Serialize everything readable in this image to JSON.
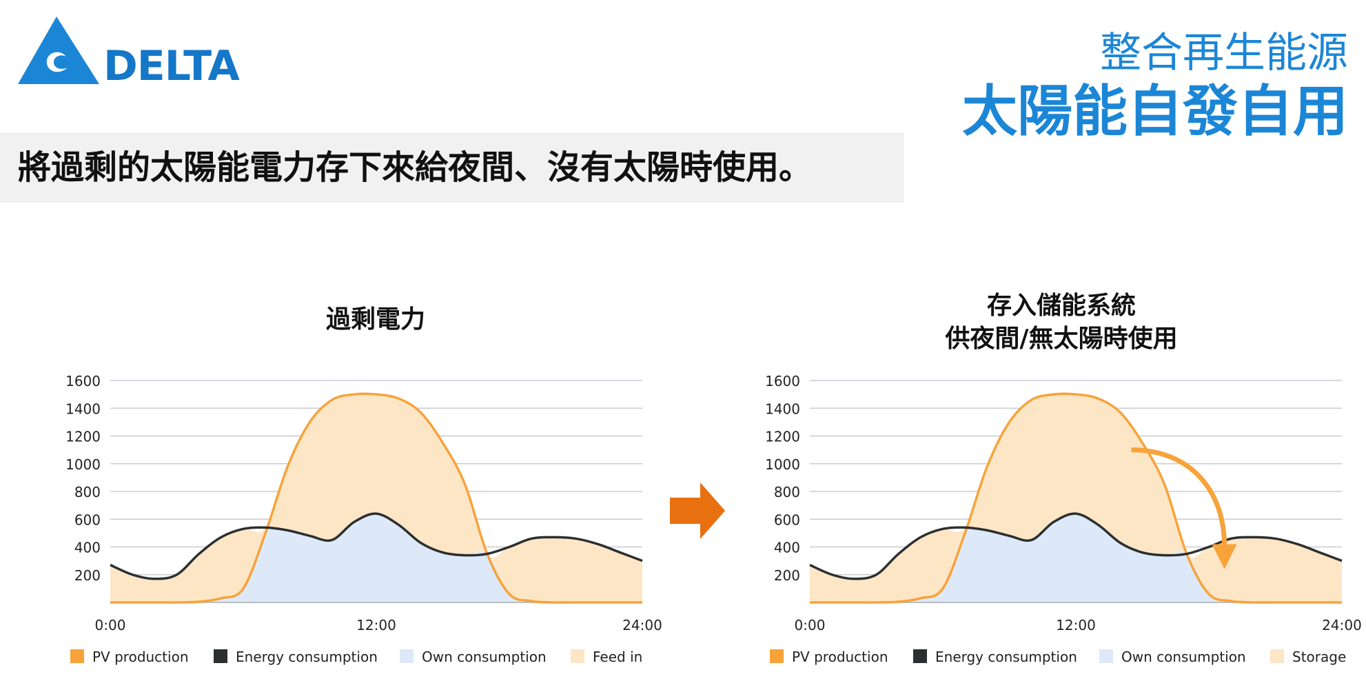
{
  "header": {
    "logo_text": "DELTA",
    "subtitle": "整合再生能源",
    "title": "太陽能自發自用"
  },
  "banner": {
    "text": "將過剩的太陽能電力存下來給夜間、沒有太陽時使用。"
  },
  "colors": {
    "brand": "#1477c8",
    "pv": "#f7a33a",
    "consumption": "#2b2f2f",
    "own": "#dde9f8",
    "surplus": "#fde6c6",
    "arrow": "#e8700e"
  },
  "chart_data": [
    {
      "type": "area",
      "title": "過剩電力",
      "ylim": [
        0,
        1600
      ],
      "yticks": [
        "200",
        "400",
        "600",
        "800",
        "1000",
        "1200",
        "1400",
        "1600"
      ],
      "xlim": [
        0,
        24
      ],
      "xticks": [
        {
          "x": 0,
          "label": "0:00"
        },
        {
          "x": 12,
          "label": "12:00"
        },
        {
          "x": 24,
          "label": "24:00"
        }
      ],
      "grid": true,
      "legend_position": "bottom",
      "legend": [
        {
          "label": "PV production",
          "color": "#f7a33a"
        },
        {
          "label": "Energy consumption",
          "color": "#2b2f2f"
        },
        {
          "label": "Own consumption",
          "color": "#dde9f8"
        },
        {
          "label": "Feed in",
          "color": "#fde6c6"
        }
      ],
      "x": [
        0,
        1,
        2,
        3,
        4,
        5,
        6,
        7,
        8,
        9,
        10,
        11,
        12,
        13,
        14,
        15,
        16,
        17,
        18,
        19,
        20,
        21,
        22,
        23,
        24
      ],
      "series": [
        {
          "name": "PV production",
          "values": [
            0,
            0,
            0,
            0,
            5,
            30,
            100,
            500,
            980,
            1300,
            1460,
            1500,
            1500,
            1470,
            1370,
            1150,
            850,
            350,
            60,
            10,
            0,
            0,
            0,
            0,
            0
          ]
        },
        {
          "name": "Energy consumption",
          "values": [
            270,
            200,
            170,
            200,
            350,
            470,
            530,
            540,
            520,
            480,
            450,
            580,
            640,
            560,
            430,
            360,
            340,
            350,
            400,
            460,
            470,
            460,
            420,
            360,
            300
          ]
        }
      ]
    },
    {
      "type": "area",
      "title": "存入儲能系統\n供夜間/無太陽時使用",
      "ylim": [
        0,
        1600
      ],
      "yticks": [
        "200",
        "400",
        "600",
        "800",
        "1000",
        "1200",
        "1400",
        "1600"
      ],
      "xlim": [
        0,
        24
      ],
      "xticks": [
        {
          "x": 0,
          "label": "0:00"
        },
        {
          "x": 12,
          "label": "12:00"
        },
        {
          "x": 24,
          "label": "24:00"
        }
      ],
      "grid": true,
      "legend_position": "bottom",
      "legend": [
        {
          "label": "PV production",
          "color": "#f7a33a"
        },
        {
          "label": "Energy consumption",
          "color": "#2b2f2f"
        },
        {
          "label": "Own consumption",
          "color": "#dde9f8"
        },
        {
          "label": "Storage",
          "color": "#fde6c6"
        }
      ],
      "x": [
        0,
        1,
        2,
        3,
        4,
        5,
        6,
        7,
        8,
        9,
        10,
        11,
        12,
        13,
        14,
        15,
        16,
        17,
        18,
        19,
        20,
        21,
        22,
        23,
        24
      ],
      "series": [
        {
          "name": "PV production",
          "values": [
            0,
            0,
            0,
            0,
            5,
            30,
            100,
            500,
            980,
            1300,
            1460,
            1500,
            1500,
            1470,
            1370,
            1150,
            850,
            350,
            60,
            10,
            0,
            0,
            0,
            0,
            0
          ]
        },
        {
          "name": "Energy consumption",
          "values": [
            270,
            200,
            170,
            200,
            350,
            470,
            530,
            540,
            520,
            480,
            450,
            580,
            640,
            560,
            430,
            360,
            340,
            350,
            400,
            460,
            470,
            460,
            420,
            360,
            300
          ]
        }
      ]
    }
  ]
}
